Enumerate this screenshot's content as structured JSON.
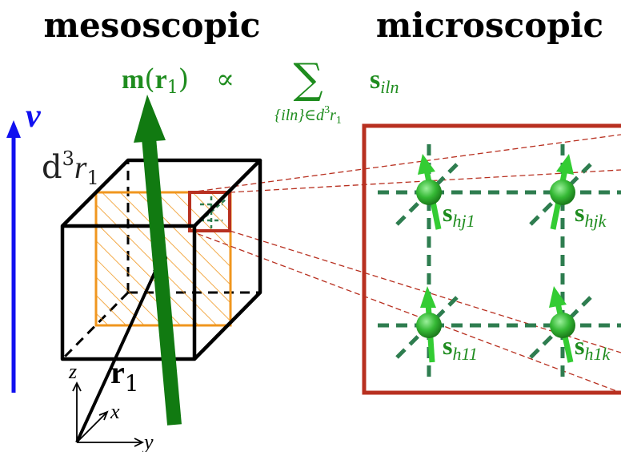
{
  "headings": {
    "left": "mesoscopic",
    "right": "microscopic"
  },
  "equation": {
    "lhs_bold": "m",
    "lhs_arg": "(",
    "lhs_arg_bold": "r",
    "lhs_sub": "1",
    "lhs_close": ")",
    "proportional": "∝",
    "sum": "∑",
    "sum_index": "{iln}∈d",
    "sum_index_sup": "3",
    "sum_index_r": "r",
    "sum_index_sub": "1",
    "rhs_bold": "s",
    "rhs_sub": "iln"
  },
  "labels": {
    "nu": "ν",
    "volume_d": "d",
    "volume_sup": "3",
    "volume_r": "r",
    "volume_sub": "1",
    "position_bold": "r",
    "position_sub": "1",
    "axis_z": "z",
    "axis_x": "x",
    "axis_y": "y"
  },
  "spins": [
    {
      "bold": "s",
      "sub": "hj1"
    },
    {
      "bold": "s",
      "sub": "hjk"
    },
    {
      "bold": "s",
      "sub": "h11"
    },
    {
      "bold": "s",
      "sub": "h1k"
    }
  ],
  "colors": {
    "green_text": "#1e8c1e",
    "green_arrow": "#117a11",
    "spin_green": "#33cc33",
    "lattice_green": "#2e7d4f",
    "blue": "#1010f0",
    "red_box": "#b83020",
    "orange": "#f0961e",
    "black": "#000000"
  }
}
